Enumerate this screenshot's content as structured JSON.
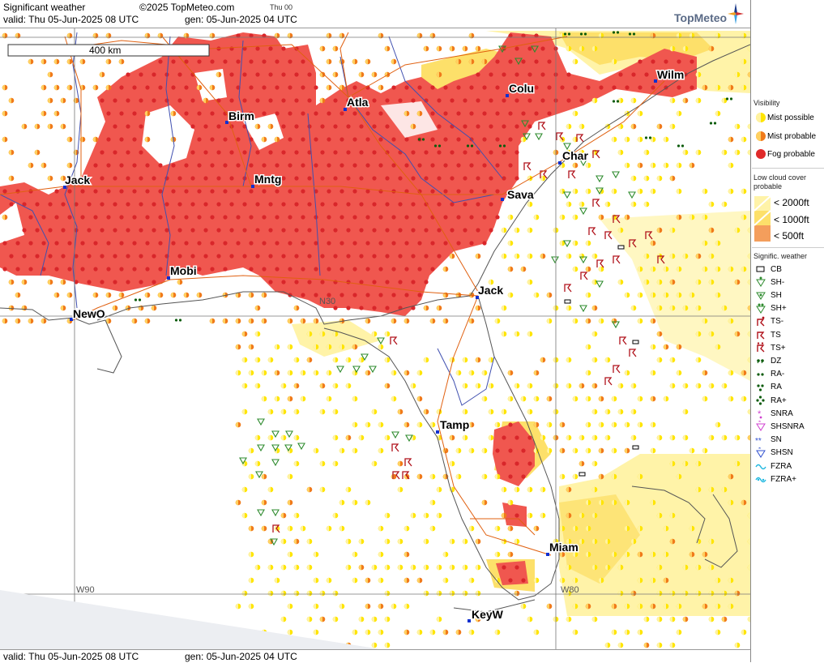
{
  "header": {
    "title": "Significant weather",
    "copyright": "©2025 TopMeteo.com",
    "day": "Thu 00",
    "valid": "valid:  Thu  05-Jun-2025  08 UTC",
    "gen": "gen:  05-Jun-2025 04 UTC"
  },
  "footer": {
    "valid": "valid:  Thu  05-Jun-2025  08 UTC",
    "gen": "gen:  05-Jun-2025 04 UTC"
  },
  "logo": {
    "text": "TopMeteo"
  },
  "scale_bar": {
    "label": "400 km"
  },
  "grid_labels": {
    "w90": "W90",
    "w80": "W80",
    "n30": "N30"
  },
  "cities": [
    {
      "name": "Birm"
    },
    {
      "name": "Atla"
    },
    {
      "name": "Colu"
    },
    {
      "name": "Wilm"
    },
    {
      "name": "Char"
    },
    {
      "name": "Jack"
    },
    {
      "name": "Mntg"
    },
    {
      "name": "Sava"
    },
    {
      "name": "Mobi"
    },
    {
      "name": "Jack"
    },
    {
      "name": "NewO"
    },
    {
      "name": "Tamp"
    },
    {
      "name": "Miam"
    },
    {
      "name": "KeyW"
    }
  ],
  "legend": {
    "visibility_title": "Visibility",
    "mist_possible": "Mist possible",
    "mist_probable": "Mist probable",
    "fog_probable": "Fog probable",
    "low_cloud_title_1": "Low cloud cover",
    "low_cloud_title_2": "probable",
    "lc_2000": "< 2000ft",
    "lc_1000": "< 1000ft",
    "lc_500": "<   500ft",
    "signif_title": "Signific. weather",
    "items": [
      "CB",
      "SH-",
      "SH",
      "SH+",
      "TS-",
      "TS",
      "TS+",
      "DZ",
      "RA-",
      "RA",
      "RA+",
      "SNRA",
      "SHSNRA",
      "SN",
      "SHSN",
      "FZRA",
      "FZRA+"
    ]
  },
  "colors": {
    "fog": "#f0574f",
    "fog_dot": "#d9262a",
    "mist_possible": "#ffe500",
    "mist_probable": "#f07a1a",
    "lowcloud_2000": "#fff3a8",
    "lowcloud_1000": "#fde06a",
    "lowcloud_500": "#f49e5c",
    "shower": "#2e8b2e",
    "thunder": "#b0121b",
    "rain": "#0d5c0d",
    "river": "#4050b0",
    "road": "#e06010",
    "land_border": "#555"
  }
}
